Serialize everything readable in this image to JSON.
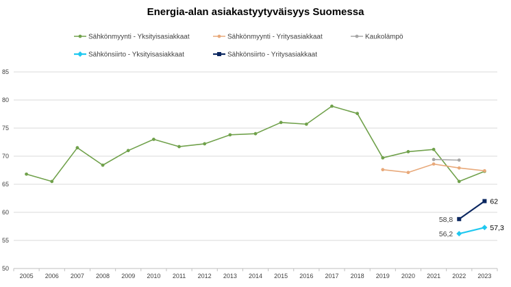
{
  "chart_data": {
    "type": "line",
    "title": "Energia-alan asiakastyytyväisyys Suomessa",
    "xlabel": "",
    "ylabel": "",
    "ylim": [
      50,
      85
    ],
    "yticks": [
      50,
      55,
      60,
      65,
      70,
      75,
      80,
      85
    ],
    "categories": [
      "2005",
      "2006",
      "2007",
      "2008",
      "2009",
      "2010",
      "2011",
      "2012",
      "2013",
      "2014",
      "2015",
      "2016",
      "2017",
      "2018",
      "2019",
      "2020",
      "2021",
      "2022",
      "2023"
    ],
    "legend_position": "top",
    "series": [
      {
        "name": "Sähkönmyynti - Yksityisasiakkaat",
        "color": "#70a14b",
        "marker": "circle",
        "values": [
          66.8,
          65.5,
          71.5,
          68.4,
          71.0,
          73.0,
          71.7,
          72.2,
          73.8,
          74.0,
          76.0,
          75.7,
          78.9,
          77.6,
          69.7,
          70.8,
          71.2,
          65.5,
          67.3
        ],
        "data_labels": {}
      },
      {
        "name": "Sähkönmyynti - Yritysasiakkaat",
        "color": "#e8a97a",
        "marker": "circle",
        "values": [
          null,
          null,
          null,
          null,
          null,
          null,
          null,
          null,
          null,
          null,
          null,
          null,
          null,
          null,
          67.6,
          67.1,
          68.6,
          67.9,
          67.4
        ],
        "data_labels": {}
      },
      {
        "name": "Kaukolämpö",
        "color": "#a6a6a6",
        "marker": "circle",
        "values": [
          null,
          null,
          null,
          null,
          null,
          null,
          null,
          null,
          null,
          null,
          null,
          null,
          null,
          null,
          null,
          null,
          69.4,
          69.3,
          null
        ],
        "data_labels": {}
      },
      {
        "name": "Sähkönsiirto - Yksityisasiakkaat",
        "color": "#1fc8f0",
        "marker": "diamond",
        "values": [
          null,
          null,
          null,
          null,
          null,
          null,
          null,
          null,
          null,
          null,
          null,
          null,
          null,
          null,
          null,
          null,
          null,
          56.2,
          57.3
        ],
        "data_labels": {
          "17": "56,2",
          "18": "57,3"
        }
      },
      {
        "name": "Sähkönsiirto - Yritysasiakkaat",
        "color": "#0b2760",
        "marker": "square",
        "values": [
          null,
          null,
          null,
          null,
          null,
          null,
          null,
          null,
          null,
          null,
          null,
          null,
          null,
          null,
          null,
          null,
          null,
          58.8,
          62.0
        ],
        "data_labels": {
          "17": "58,8",
          "18": "62"
        }
      }
    ]
  }
}
